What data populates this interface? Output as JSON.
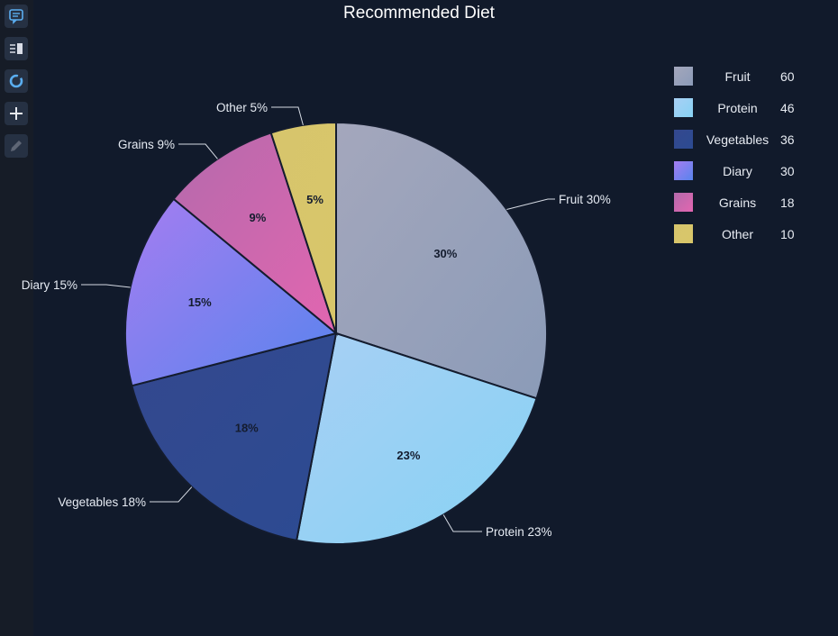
{
  "toolbar": {
    "items": [
      {
        "icon": "comment-icon",
        "active": true
      },
      {
        "icon": "list-icon",
        "active": false
      },
      {
        "icon": "donut-icon",
        "active": false
      },
      {
        "icon": "plus-icon",
        "active": false
      },
      {
        "icon": "pencil-icon",
        "active": false
      }
    ]
  },
  "chart_data": {
    "type": "pie",
    "title": "Recommended Diet",
    "legend_position": "top-right",
    "categories": [
      "Fruit",
      "Protein",
      "Vegetables",
      "Diary",
      "Grains",
      "Other"
    ],
    "values": [
      60,
      46,
      36,
      30,
      18,
      10
    ],
    "percent_labels": [
      "30%",
      "23%",
      "18%",
      "15%",
      "9%",
      "5%"
    ],
    "outer_labels": [
      "Fruit 30%",
      "Protein 23%",
      "Vegetables 18%",
      "Diary 15%",
      "Grains 9%",
      "Other 5%"
    ],
    "colors": [
      [
        "#a4a7bc",
        "#8b9bb8"
      ],
      [
        "#a8d0f4",
        "#87d2f4"
      ],
      [
        "#34488e",
        "#2c4b92"
      ],
      [
        "#a57df0",
        "#5884ee"
      ],
      [
        "#b46aac",
        "#e266b0"
      ],
      [
        "#d7c56c",
        "#d8c66a"
      ]
    ]
  }
}
